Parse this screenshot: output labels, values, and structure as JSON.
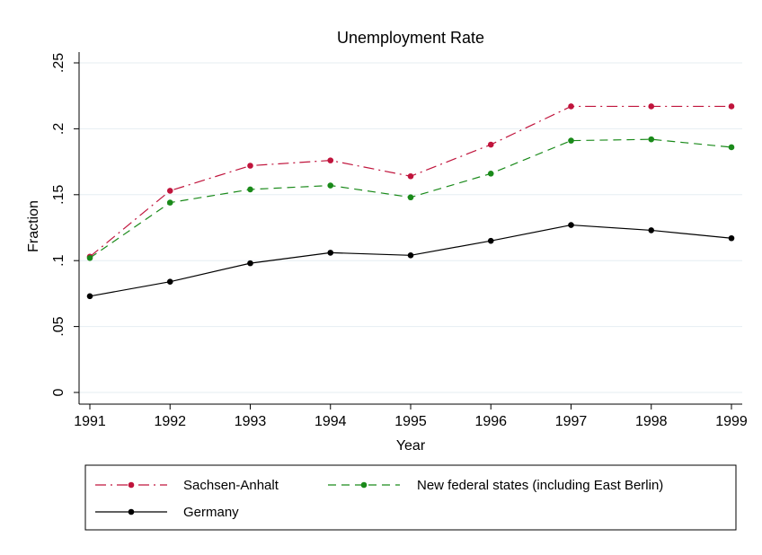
{
  "chart_data": {
    "type": "line",
    "title": "Unemployment Rate",
    "xlabel": "Year",
    "ylabel": "Fraction",
    "x": [
      1991,
      1992,
      1993,
      1994,
      1995,
      1996,
      1997,
      1998,
      1999
    ],
    "x_tick_labels": [
      "1991",
      "1992",
      "1993",
      "1994",
      "1995",
      "1996",
      "1997",
      "1998",
      "1999"
    ],
    "ylim": [
      0,
      0.25
    ],
    "y_ticks": [
      0,
      0.05,
      0.1,
      0.15,
      0.2,
      0.25
    ],
    "y_tick_labels": [
      "0",
      ".05",
      ".1",
      ".15",
      ".2",
      ".25"
    ],
    "grid": true,
    "legend_position": "bottom",
    "series": [
      {
        "name": "Sachsen-Anhalt",
        "color": "#c0143c",
        "line_style": "dash-dot",
        "values": [
          0.103,
          0.153,
          0.172,
          0.176,
          0.164,
          0.188,
          0.217,
          0.217,
          0.217
        ]
      },
      {
        "name": "New federal states (including East Berlin)",
        "color": "#1a8a1a",
        "line_style": "dashed",
        "values": [
          0.102,
          0.144,
          0.154,
          0.157,
          0.148,
          0.166,
          0.191,
          0.192,
          0.186
        ]
      },
      {
        "name": "Germany",
        "color": "#000000",
        "line_style": "solid",
        "values": [
          0.073,
          0.084,
          0.098,
          0.106,
          0.104,
          0.115,
          0.127,
          0.123,
          0.117
        ]
      }
    ]
  }
}
